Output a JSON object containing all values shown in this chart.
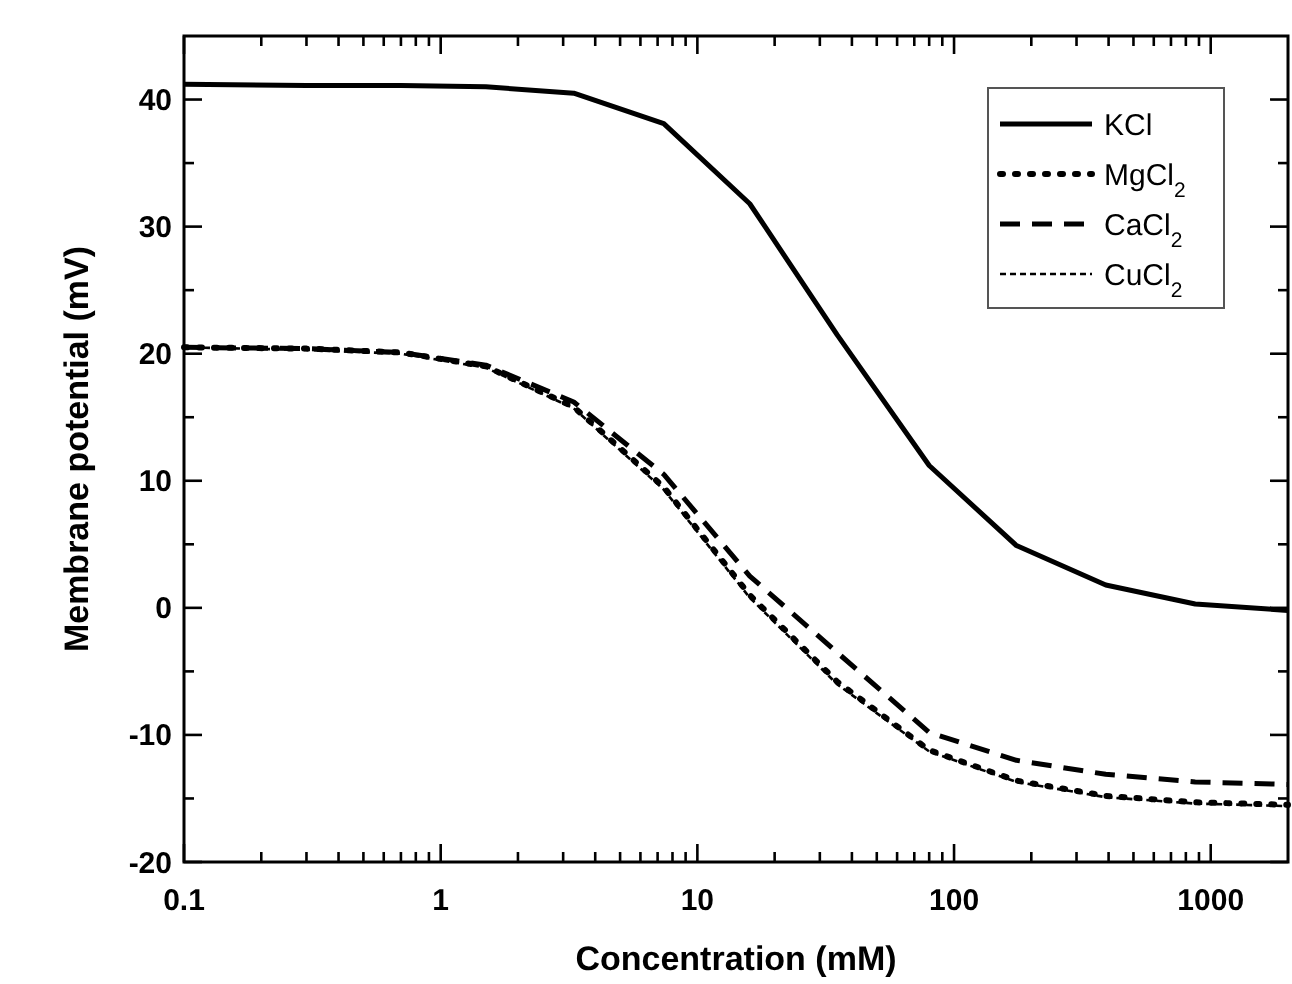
{
  "chart_data": {
    "type": "line",
    "xlabel": "Concentration (mM)",
    "ylabel": "Membrane potential (mV)",
    "log": "x",
    "xlim": [
      0.1,
      2000
    ],
    "ylim": [
      -20,
      45
    ],
    "xticks": [
      0.1,
      {
        "value": 0.2,
        "label": null
      },
      {
        "value": 0.3,
        "label": null
      },
      {
        "value": 0.4,
        "label": null
      },
      {
        "value": 0.5,
        "label": null
      },
      {
        "value": 0.6,
        "label": null
      },
      {
        "value": 0.7,
        "label": null
      },
      {
        "value": 0.8,
        "label": null
      },
      {
        "value": 0.9,
        "label": null
      },
      1,
      {
        "value": 2,
        "label": null
      },
      {
        "value": 3,
        "label": null
      },
      {
        "value": 4,
        "label": null
      },
      {
        "value": 5,
        "label": null
      },
      {
        "value": 6,
        "label": null
      },
      {
        "value": 7,
        "label": null
      },
      {
        "value": 8,
        "label": null
      },
      {
        "value": 9,
        "label": null
      },
      10,
      {
        "value": 20,
        "label": null
      },
      {
        "value": 30,
        "label": null
      },
      {
        "value": 40,
        "label": null
      },
      {
        "value": 50,
        "label": null
      },
      {
        "value": 60,
        "label": null
      },
      {
        "value": 70,
        "label": null
      },
      {
        "value": 80,
        "label": null
      },
      {
        "value": 90,
        "label": null
      },
      100,
      {
        "value": 200,
        "label": null
      },
      {
        "value": 300,
        "label": null
      },
      {
        "value": 400,
        "label": null
      },
      {
        "value": 500,
        "label": null
      },
      {
        "value": 600,
        "label": null
      },
      {
        "value": 700,
        "label": null
      },
      {
        "value": 800,
        "label": null
      },
      {
        "value": 900,
        "label": null
      },
      1000
    ],
    "yticks": [
      -20,
      {
        "value": -15,
        "label": null
      },
      -10,
      {
        "value": -5,
        "label": null
      },
      0,
      {
        "value": 5,
        "label": null
      },
      10,
      {
        "value": 15,
        "label": null
      },
      20,
      {
        "value": 25,
        "label": null
      },
      30,
      {
        "value": 35,
        "label": null
      },
      40
    ],
    "grid": false,
    "legend": "top right",
    "marker": "none",
    "x": [
      0.1,
      0.3,
      0.7,
      1.5,
      3.3,
      7.4,
      16,
      35,
      80,
      175,
      390,
      870,
      2000
    ],
    "series": [
      {
        "name": "KCl",
        "color": "#000000",
        "line_style": "solid",
        "values": [
          41.2,
          41.1,
          41.1,
          41,
          40.5,
          38.1,
          31.8,
          21.5,
          11.2,
          4.9,
          1.8,
          0.3,
          -0.2
        ]
      },
      {
        "name": "MgCl$_{2}$",
        "color": "#000000",
        "line_style": "dotted",
        "values": [
          20.5,
          20.4,
          20.1,
          19,
          15.8,
          9.5,
          1,
          -5.8,
          -11.2,
          -13.6,
          -14.8,
          -15.3,
          -15.5
        ]
      },
      {
        "name": "CaCl$_{2}$",
        "color": "#000000",
        "line_style": "dashed",
        "values": [
          20.5,
          20.4,
          20.1,
          19.1,
          16.2,
          10.5,
          2.5,
          -3.5,
          -9.8,
          -12,
          -13.1,
          -13.7,
          -13.9
        ]
      },
      {
        "name": "CuCl$_{2}$",
        "color": "#000000",
        "line_style": "dashed",
        "values": [
          20.5,
          20.3,
          20,
          18.9,
          15.7,
          9.3,
          0.8,
          -6,
          -11.3,
          -13.7,
          -14.9,
          -15.4,
          -15.6
        ]
      }
    ]
  }
}
